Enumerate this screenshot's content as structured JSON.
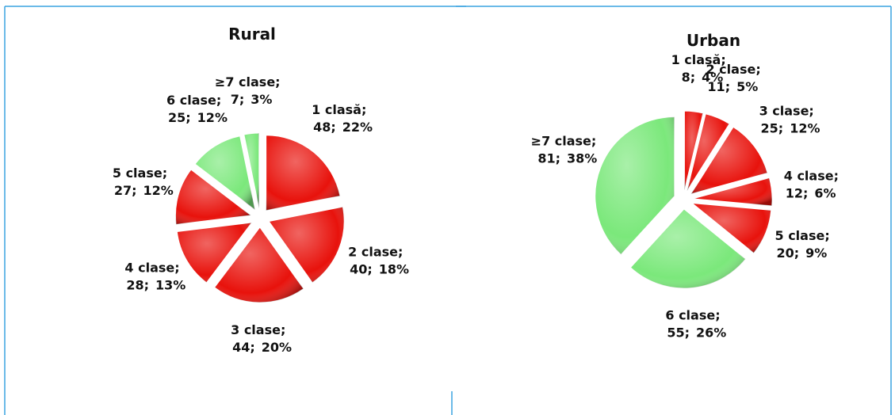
{
  "chart_data": [
    {
      "type": "pie",
      "title": "Rural",
      "categories": [
        "1 clasă;",
        "2 clase;",
        "3 clase;",
        "4 clase;",
        "5 clase;",
        "6 clase;",
        "≥7 clase;"
      ],
      "values": [
        48,
        40,
        44,
        28,
        27,
        25,
        7
      ],
      "value_labels": [
        "48;",
        "40;",
        "44;",
        "28;",
        "27;",
        "25;",
        "7;"
      ],
      "percents": [
        22,
        18,
        20,
        13,
        12,
        12,
        3
      ],
      "percent_labels": [
        "22%",
        "18%",
        "20%",
        "13%",
        "12%",
        "12%",
        "3%"
      ],
      "colors": [
        "#e8120c",
        "#e8120c",
        "#e8120c",
        "#e8120c",
        "#e8120c",
        "#7be87b",
        "#7be87b"
      ]
    },
    {
      "type": "pie",
      "title": "Urban",
      "categories": [
        "1 clasă;",
        "2 clase;",
        "3 clase;",
        "4 clase;",
        "5 clase;",
        "6 clase;",
        "≥7 clase;"
      ],
      "values": [
        8,
        11,
        25,
        12,
        20,
        55,
        81
      ],
      "value_labels": [
        "8;",
        "11;",
        "25;",
        "12;",
        "20;",
        "55;",
        "81;"
      ],
      "percents": [
        4,
        5,
        12,
        6,
        9,
        26,
        38
      ],
      "percent_labels": [
        "4%",
        "5%",
        "12%",
        "6%",
        "9%",
        "26%",
        "38%"
      ],
      "colors": [
        "#e8120c",
        "#e8120c",
        "#e8120c",
        "#e8120c",
        "#e8120c",
        "#7be87b",
        "#7be87b"
      ]
    }
  ]
}
